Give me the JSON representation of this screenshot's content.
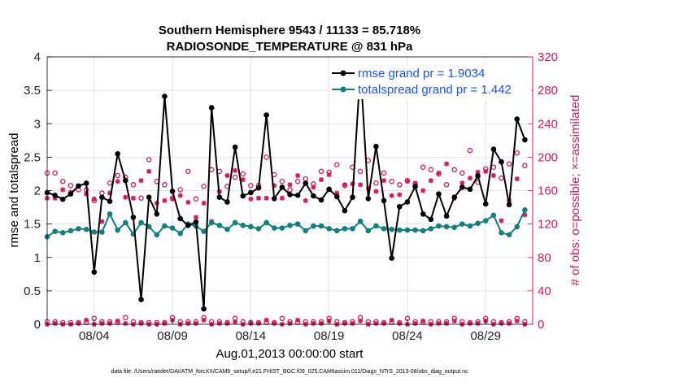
{
  "chart_data": {
    "type": "line",
    "title_line1": "Southern Hemisphere 9543 / 11133 = 85.718%",
    "title_line2": "RADIOSONDE_TEMPERATURE @ 831 hPa",
    "xlabel": "Aug.01,2013 00:00:00 start",
    "ylabel_left": "rmse and totalspread",
    "ylabel_right": "# of obs: o=possible; ×=assimilated",
    "xlim": [
      1,
      32
    ],
    "ylim_left": [
      0,
      4
    ],
    "ylim_right": [
      0,
      320
    ],
    "x_ticks": [
      {
        "x": 4,
        "label": "08/04"
      },
      {
        "x": 9,
        "label": "08/09"
      },
      {
        "x": 14,
        "label": "08/14"
      },
      {
        "x": 19,
        "label": "08/19"
      },
      {
        "x": 24,
        "label": "08/24"
      },
      {
        "x": 29,
        "label": "08/29"
      }
    ],
    "y_ticks_left": [
      {
        "v": 0,
        "label": "0"
      },
      {
        "v": 0.5,
        "label": "0.5"
      },
      {
        "v": 1,
        "label": "1"
      },
      {
        "v": 1.5,
        "label": "1.5"
      },
      {
        "v": 2,
        "label": "2"
      },
      {
        "v": 2.5,
        "label": "2.5"
      },
      {
        "v": 3,
        "label": "3"
      },
      {
        "v": 3.5,
        "label": "3.5"
      },
      {
        "v": 4,
        "label": "4"
      }
    ],
    "y_ticks_right": [
      {
        "v": 0,
        "label": "0"
      },
      {
        "v": 40,
        "label": "40"
      },
      {
        "v": 80,
        "label": "80"
      },
      {
        "v": 120,
        "label": "120"
      },
      {
        "v": 160,
        "label": "160"
      },
      {
        "v": 200,
        "label": "200"
      },
      {
        "v": 240,
        "label": "240"
      },
      {
        "v": 280,
        "label": "280"
      },
      {
        "v": 320,
        "label": "320"
      }
    ],
    "legend": {
      "placement": "top-right",
      "entries": [
        {
          "name": "rmse grand pr = 1.9034",
          "color": "#000000"
        },
        {
          "name": "totalspread grand pr = 1.442",
          "color": "#0f7f7f"
        }
      ]
    },
    "colors": {
      "rmse": "#000000",
      "spread": "#0f7f7f",
      "obs": "#d6195a",
      "axis": "#000000",
      "right_axis": "#d6195a"
    },
    "x": [
      1.0,
      1.5,
      2.0,
      2.5,
      3.0,
      3.5,
      4.0,
      4.5,
      5.0,
      5.5,
      6.0,
      6.5,
      7.0,
      7.5,
      8.0,
      8.5,
      9.0,
      9.5,
      10.0,
      10.5,
      11.0,
      11.5,
      12.0,
      12.5,
      13.0,
      13.5,
      14.0,
      14.5,
      15.0,
      15.5,
      16.0,
      16.5,
      17.0,
      17.5,
      18.0,
      18.5,
      19.0,
      19.5,
      20.0,
      20.5,
      21.0,
      21.5,
      22.0,
      22.5,
      23.0,
      23.5,
      24.0,
      24.5,
      25.0,
      25.5,
      26.0,
      26.5,
      27.0,
      27.5,
      28.0,
      28.5,
      29.0,
      29.5,
      30.0,
      30.5,
      31.0,
      31.5
    ],
    "series": [
      {
        "name": "rmse",
        "values": [
          1.97,
          1.93,
          1.87,
          1.95,
          2.07,
          2.11,
          0.78,
          1.9,
          1.84,
          2.55,
          2.15,
          1.6,
          0.37,
          1.9,
          1.65,
          3.41,
          1.99,
          1.58,
          1.48,
          1.53,
          0.23,
          3.24,
          1.9,
          1.83,
          2.65,
          1.92,
          1.97,
          2.04,
          3.13,
          1.88,
          2.05,
          1.94,
          1.93,
          2.11,
          1.92,
          1.86,
          2.02,
          1.91,
          1.7,
          1.9,
          3.84,
          1.88,
          2.66,
          1.85,
          0.99,
          1.76,
          1.83,
          2.06,
          1.65,
          1.57,
          1.95,
          1.62,
          1.9,
          2.05,
          2.02,
          2.22,
          1.8,
          2.62,
          2.43,
          1.79,
          3.07,
          2.76
        ]
      },
      {
        "name": "totalspread",
        "values": [
          1.31,
          1.39,
          1.37,
          1.4,
          1.43,
          1.42,
          1.38,
          1.38,
          1.65,
          1.41,
          1.52,
          1.35,
          1.52,
          1.46,
          1.34,
          1.47,
          1.44,
          1.36,
          1.5,
          1.47,
          1.39,
          1.52,
          1.48,
          1.42,
          1.52,
          1.48,
          1.46,
          1.43,
          1.52,
          1.44,
          1.44,
          1.48,
          1.5,
          1.4,
          1.47,
          1.47,
          1.43,
          1.4,
          1.43,
          1.43,
          1.54,
          1.4,
          1.47,
          1.43,
          1.42,
          1.41,
          1.41,
          1.41,
          1.4,
          1.43,
          1.47,
          1.46,
          1.45,
          1.5,
          1.47,
          1.51,
          1.55,
          1.63,
          1.37,
          1.34,
          1.46,
          1.71
        ]
      },
      {
        "name": "obs_possible",
        "values": [
          181,
          181,
          171,
          166,
          161,
          161,
          148,
          157,
          169,
          178,
          176,
          167,
          151,
          197,
          171,
          167,
          151,
          161,
          183,
          150,
          165,
          185,
          183,
          165,
          176,
          180,
          166,
          166,
          200,
          179,
          171,
          161,
          171,
          174,
          168,
          183,
          182,
          191,
          166,
          188,
          183,
          196,
          169,
          181,
          171,
          167,
          172,
          168,
          188,
          185,
          180,
          167,
          185,
          181,
          208,
          170,
          186,
          188,
          175,
          192,
          205,
          190
        ]
      },
      {
        "name": "obs_assimilated",
        "values": [
          151,
          151,
          161,
          158,
          165,
          156,
          150,
          123,
          157,
          171,
          152,
          151,
          172,
          183,
          145,
          148,
          150,
          154,
          146,
          128,
          145,
          123,
          159,
          178,
          184,
          173,
          150,
          151,
          151,
          166,
          151,
          167,
          178,
          148,
          164,
          173,
          179,
          157,
          167,
          168,
          167,
          163,
          159,
          172,
          154,
          155,
          171,
          169,
          160,
          172,
          181,
          192,
          151,
          169,
          175,
          182,
          183,
          178,
          124,
          148,
          174,
          131
        ]
      },
      {
        "name": "obs_possible_lower",
        "values": [
          3,
          3,
          2,
          2,
          2,
          2,
          7,
          3,
          3,
          2,
          8,
          3,
          2,
          2,
          2,
          2,
          8,
          3,
          3,
          3,
          8,
          3,
          3,
          2,
          7,
          3,
          2,
          2,
          2,
          2,
          7,
          3,
          2,
          3,
          3,
          3,
          7,
          3,
          2,
          3,
          8,
          3,
          3,
          2,
          2,
          2,
          7,
          3,
          2,
          3,
          3,
          3,
          7,
          3,
          2,
          3,
          7,
          3,
          2,
          3,
          7,
          3
        ]
      },
      {
        "name": "obs_assimilated_lower",
        "values": [
          0,
          1,
          0,
          0,
          1,
          5,
          0,
          1,
          1,
          4,
          1,
          0,
          1,
          0,
          0,
          1,
          5,
          0,
          1,
          1,
          5,
          0,
          1,
          1,
          3,
          0,
          1,
          1,
          5,
          1,
          0,
          1,
          5,
          0,
          1,
          1,
          4,
          0,
          1,
          1,
          4,
          0,
          1,
          1,
          5,
          1,
          0,
          1,
          4,
          0,
          1,
          1,
          4,
          0,
          1,
          1,
          4,
          0,
          1,
          1,
          4,
          0
        ]
      }
    ]
  },
  "footer": {
    "path": "data file: /Users/raeder/DAI/ATM_forcXX/CAM6_setup/f.e21.FHIST_BGC.f09_025.CAM6assim.011/Diags_NTrS_2013-08/obs_diag_output.nc"
  }
}
